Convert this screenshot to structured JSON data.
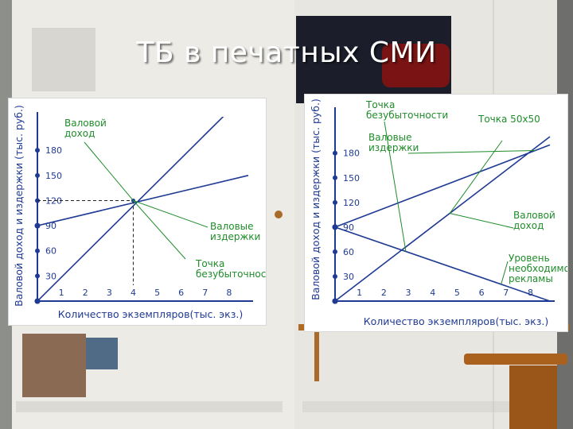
{
  "slide": {
    "title": "ТБ в печатных СМИ"
  },
  "colors": {
    "revenue": "#1f3a93",
    "cost": "#1f8c2a",
    "ad": "#1f3a93",
    "annotation": "#1f8c2a",
    "axis": "#1f3a93"
  },
  "chart_data": [
    {
      "type": "line",
      "title": "",
      "xlabel": "Количество экземпляров(тыс. экз.)",
      "ylabel": "Валовой доход и издержки (тыс. руб.)",
      "xlim": [
        0,
        8.8
      ],
      "ylim": [
        0,
        220
      ],
      "x_ticks": [
        1,
        2,
        3,
        4,
        5,
        6,
        7,
        8
      ],
      "y_ticks": [
        30,
        60,
        90,
        120,
        150,
        180
      ],
      "grid": false,
      "series": [
        {
          "name": "Валовой доход",
          "x": [
            0,
            8.8
          ],
          "y": [
            0,
            250
          ]
        },
        {
          "name": "Валовые издержки",
          "x": [
            0,
            8.8
          ],
          "y": [
            90,
            150
          ]
        }
      ],
      "breakeven": {
        "x": 4,
        "y": 120
      },
      "annotations": [
        {
          "text": "Валовой доход"
        },
        {
          "text": "Валовые издержки"
        },
        {
          "text": "Точка безубыточности"
        }
      ]
    },
    {
      "type": "line",
      "title": "",
      "xlabel": "Количество экземпляров(тыс. экз.)",
      "ylabel": "Валовой доход и издержки (тыс. руб.)",
      "xlim": [
        0,
        8.8
      ],
      "ylim": [
        0,
        230
      ],
      "x_ticks": [
        1,
        2,
        3,
        4,
        5,
        6,
        7,
        8
      ],
      "y_ticks": [
        30,
        60,
        90,
        120,
        150,
        180
      ],
      "grid": false,
      "series": [
        {
          "name": "Валовой доход",
          "x": [
            0,
            8.8
          ],
          "y": [
            0,
            200
          ]
        },
        {
          "name": "Валовые издержки",
          "x": [
            0,
            8.8
          ],
          "y": [
            90,
            190
          ]
        },
        {
          "name": "Уровень необходимой рекламы",
          "x": [
            0,
            8.8
          ],
          "y": [
            90,
            0
          ]
        }
      ],
      "annotations": [
        {
          "text": "Точка безубыточности"
        },
        {
          "text": "Точка 50x50"
        },
        {
          "text": "Валовые издержки"
        },
        {
          "text": "Валовой доход"
        },
        {
          "text": "Уровень необходимой рекламы"
        }
      ]
    }
  ]
}
